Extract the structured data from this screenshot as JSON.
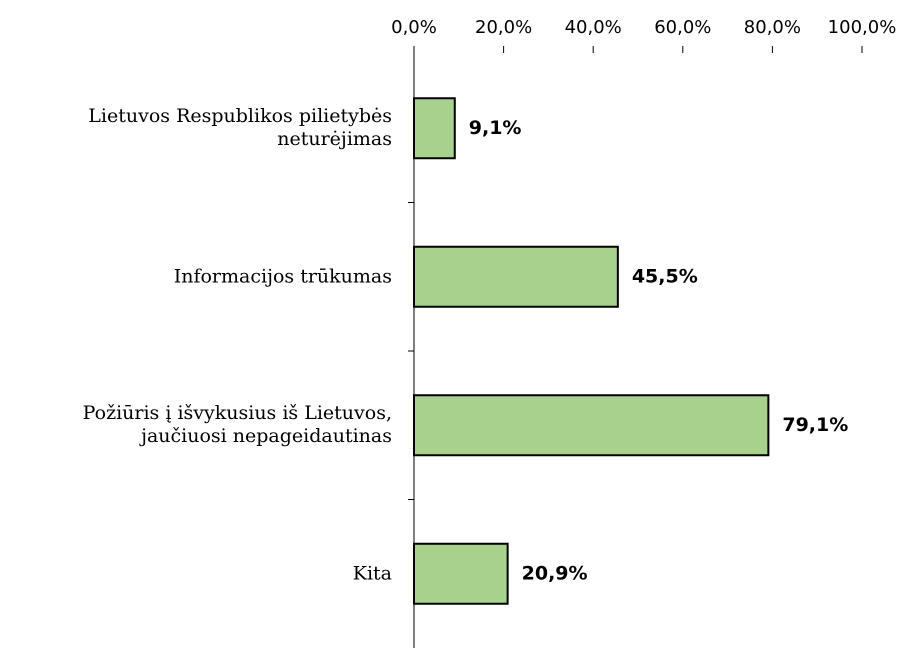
{
  "chart_data": {
    "type": "bar",
    "orientation": "horizontal",
    "categories": [
      "Lietuvos Respublikos pilietybės neturėjimas",
      "Informacijos trūkumas",
      "Požiūris į išvykusius iš Lietuvos, jaučiuosi nepageidautinas",
      "Kita"
    ],
    "values": [
      9.1,
      45.5,
      79.1,
      20.9
    ],
    "value_labels": [
      "9,1%",
      "45,5%",
      "79,1%",
      "20,9%"
    ],
    "color": "#a9d18e",
    "xlim": [
      0,
      100
    ],
    "xticks": [
      {
        "value": 0,
        "label": "0,0%"
      },
      {
        "value": 20,
        "label": "20,0%"
      },
      {
        "value": 40,
        "label": "40,0%"
      },
      {
        "value": 60,
        "label": "60,0%"
      },
      {
        "value": 80,
        "label": "80,0%"
      },
      {
        "value": 100,
        "label": "100,0%"
      }
    ],
    "grid": false
  }
}
